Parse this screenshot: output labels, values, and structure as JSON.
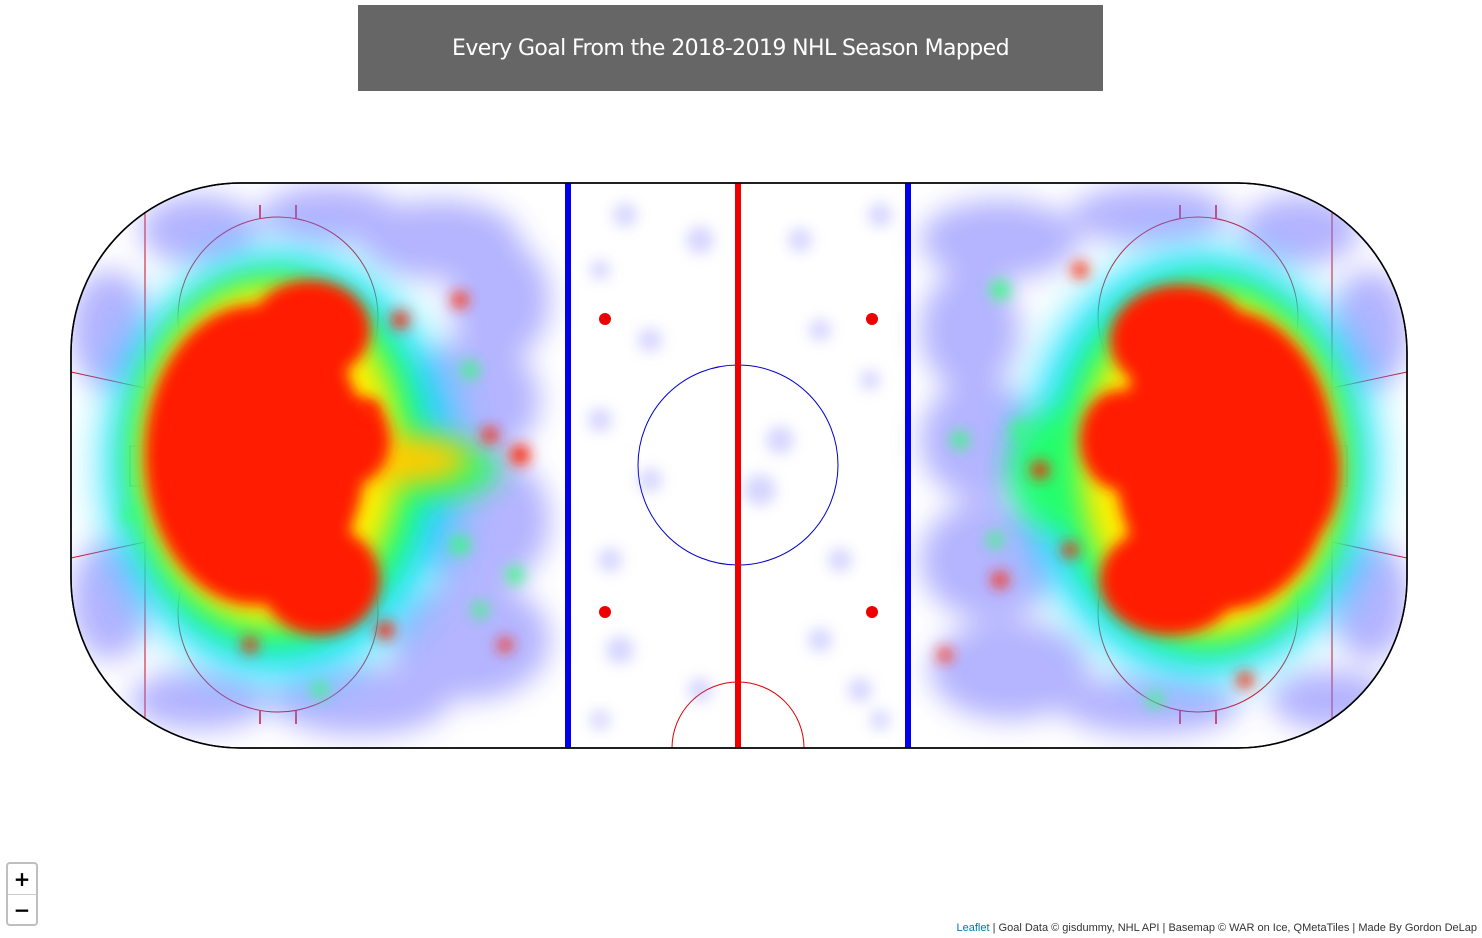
{
  "title": "Every Goal From the 2018-2019 NHL Season Mapped",
  "zoom": {
    "in_label": "+",
    "out_label": "−"
  },
  "attribution": {
    "leaflet_link": "Leaflet",
    "sep1": " | ",
    "goal_data": "Goal Data © gisdummy, NHL API",
    "sep2": " | ",
    "basemap": "Basemap © WAR on Ice, QMetaTiles",
    "sep3": " | ",
    "credit": "Made By Gordon DeLap"
  },
  "colors": {
    "title_bg": "#666666",
    "blue_line": "#0000ee",
    "red_line": "#ee0000",
    "heat_low": "#8888ff",
    "heat_mid": "#00ff88",
    "heat_high": "#ff0000",
    "leaflet_link": "#0078a8"
  },
  "layers": {
    "basemap": "hockey-rink",
    "overlay": "goal-heatmap"
  }
}
